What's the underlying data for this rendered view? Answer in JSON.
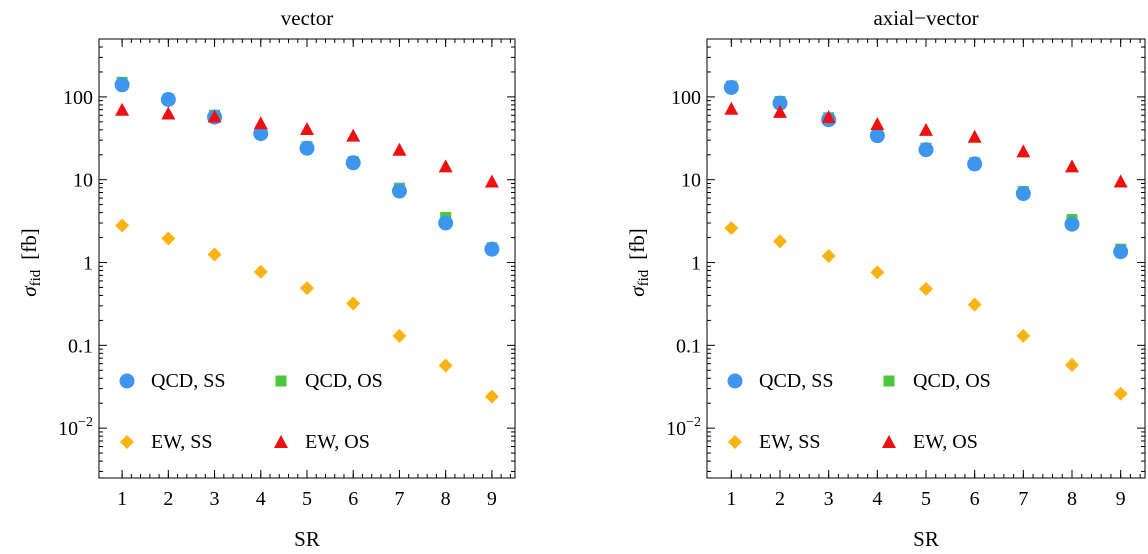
{
  "chart_data": [
    {
      "type": "scatter",
      "title": "vector",
      "xlabel": "SR",
      "ylabel": "σ_fid [fb]",
      "ylabel_main": "σ",
      "ylabel_sub": "fid",
      "ylabel_unit": "[fb]",
      "yscale": "log",
      "xlim": [
        0.5,
        9.5
      ],
      "ylim": [
        0.0025,
        500
      ],
      "x": [
        1,
        2,
        3,
        4,
        5,
        6,
        7,
        8,
        9
      ],
      "xticks": [
        "1",
        "2",
        "3",
        "4",
        "5",
        "6",
        "7",
        "8",
        "9"
      ],
      "yticks": [
        {
          "value": 0.01,
          "base": "10",
          "exp": "−2"
        },
        {
          "value": 0.1,
          "label": "0.1"
        },
        {
          "value": 1,
          "label": "1"
        },
        {
          "value": 10,
          "label": "10"
        },
        {
          "value": 100,
          "label": "100"
        }
      ],
      "series": [
        {
          "name": "QCD, SS",
          "marker": "circle",
          "color": "#3e95ee",
          "values": [
            140,
            93,
            57,
            36,
            24,
            16,
            7.3,
            3.0,
            1.45
          ]
        },
        {
          "name": "QCD, OS",
          "marker": "square",
          "color": "#4cc93a",
          "values": [
            150,
            95,
            60,
            38,
            25,
            16.5,
            7.9,
            3.5,
            1.5
          ]
        },
        {
          "name": "EW, SS",
          "marker": "diamond",
          "color": "#fbb311",
          "values": [
            2.8,
            1.95,
            1.25,
            0.77,
            0.49,
            0.32,
            0.13,
            0.057,
            0.024
          ]
        },
        {
          "name": "EW, OS",
          "marker": "triangle",
          "color": "#ee1111",
          "values": [
            70,
            63,
            58,
            48,
            41,
            34,
            23,
            14.5,
            9.5
          ]
        }
      ]
    },
    {
      "type": "scatter",
      "title": "axial−vector",
      "xlabel": "SR",
      "ylabel": "σ_fid [fb]",
      "ylabel_main": "σ",
      "ylabel_sub": "fid",
      "ylabel_unit": "[fb]",
      "yscale": "log",
      "xlim": [
        0.5,
        9.5
      ],
      "ylim": [
        0.0025,
        500
      ],
      "x": [
        1,
        2,
        3,
        4,
        5,
        6,
        7,
        8,
        9
      ],
      "xticks": [
        "1",
        "2",
        "3",
        "4",
        "5",
        "6",
        "7",
        "8",
        "9"
      ],
      "yticks": [
        {
          "value": 0.01,
          "base": "10",
          "exp": "−2"
        },
        {
          "value": 0.1,
          "label": "0.1"
        },
        {
          "value": 1,
          "label": "1"
        },
        {
          "value": 10,
          "label": "10"
        },
        {
          "value": 100,
          "label": "100"
        }
      ],
      "series": [
        {
          "name": "QCD, SS",
          "marker": "circle",
          "color": "#3e95ee",
          "values": [
            130,
            84,
            53,
            34,
            23,
            15.5,
            6.8,
            2.9,
            1.35
          ]
        },
        {
          "name": "QCD, OS",
          "marker": "square",
          "color": "#4cc93a",
          "values": [
            135,
            88,
            56,
            36,
            24,
            16,
            7.2,
            3.3,
            1.45
          ]
        },
        {
          "name": "EW, SS",
          "marker": "diamond",
          "color": "#fbb311",
          "values": [
            2.6,
            1.8,
            1.2,
            0.76,
            0.48,
            0.31,
            0.13,
            0.058,
            0.026
          ]
        },
        {
          "name": "EW, OS",
          "marker": "triangle",
          "color": "#ee1111",
          "values": [
            72,
            66,
            57,
            47,
            40,
            33,
            22,
            14.5,
            9.5
          ]
        }
      ]
    }
  ]
}
